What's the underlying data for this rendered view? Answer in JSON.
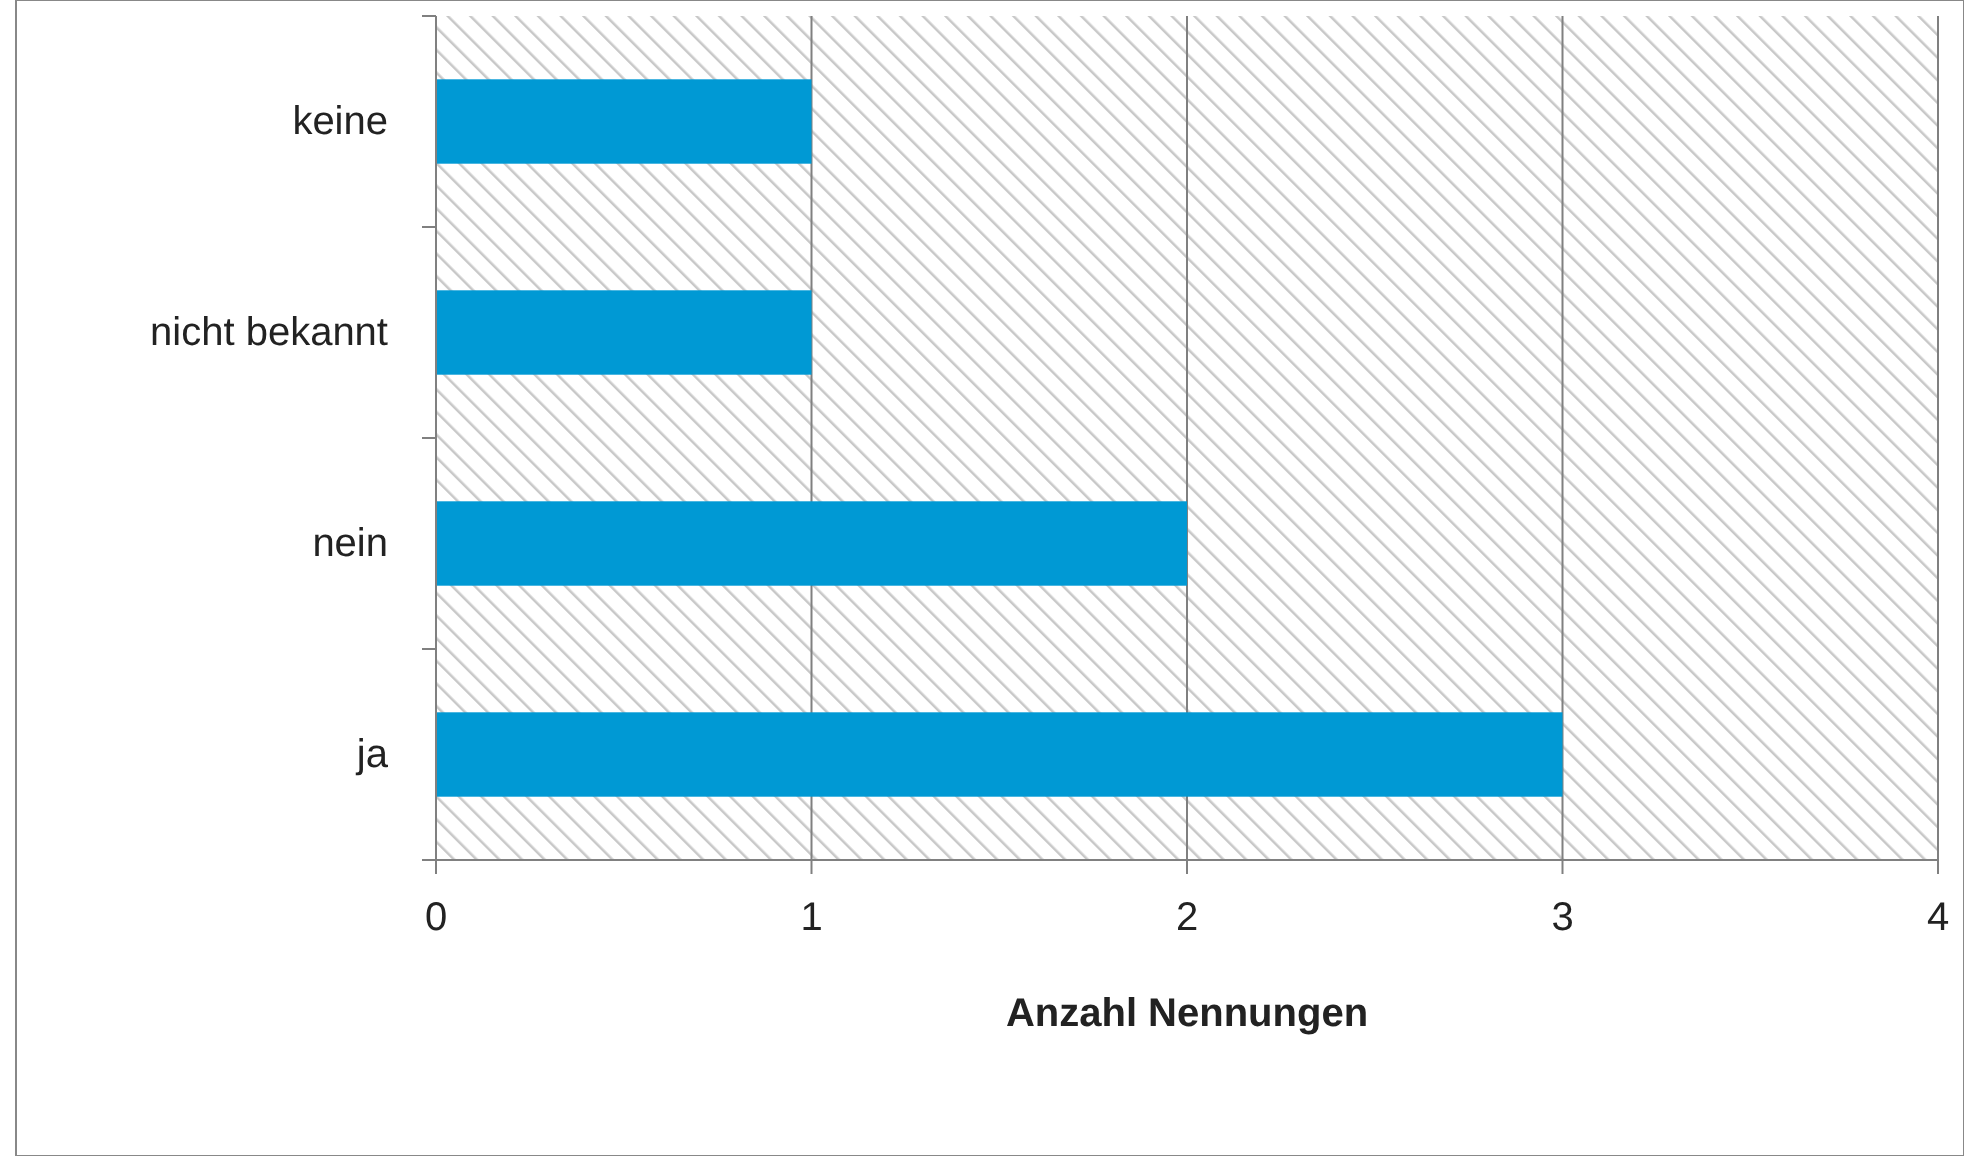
{
  "chart_data": {
    "type": "bar",
    "orientation": "horizontal",
    "xlabel": "Anzahl Nennungen",
    "categories": [
      "keine",
      "nicht bekannt",
      "nein",
      "ja"
    ],
    "values": [
      1,
      1,
      2,
      3
    ],
    "color": "#0099d4",
    "xlim": [
      0,
      4
    ],
    "xticks": [
      0,
      1,
      2,
      3,
      4
    ],
    "grid": "x"
  }
}
